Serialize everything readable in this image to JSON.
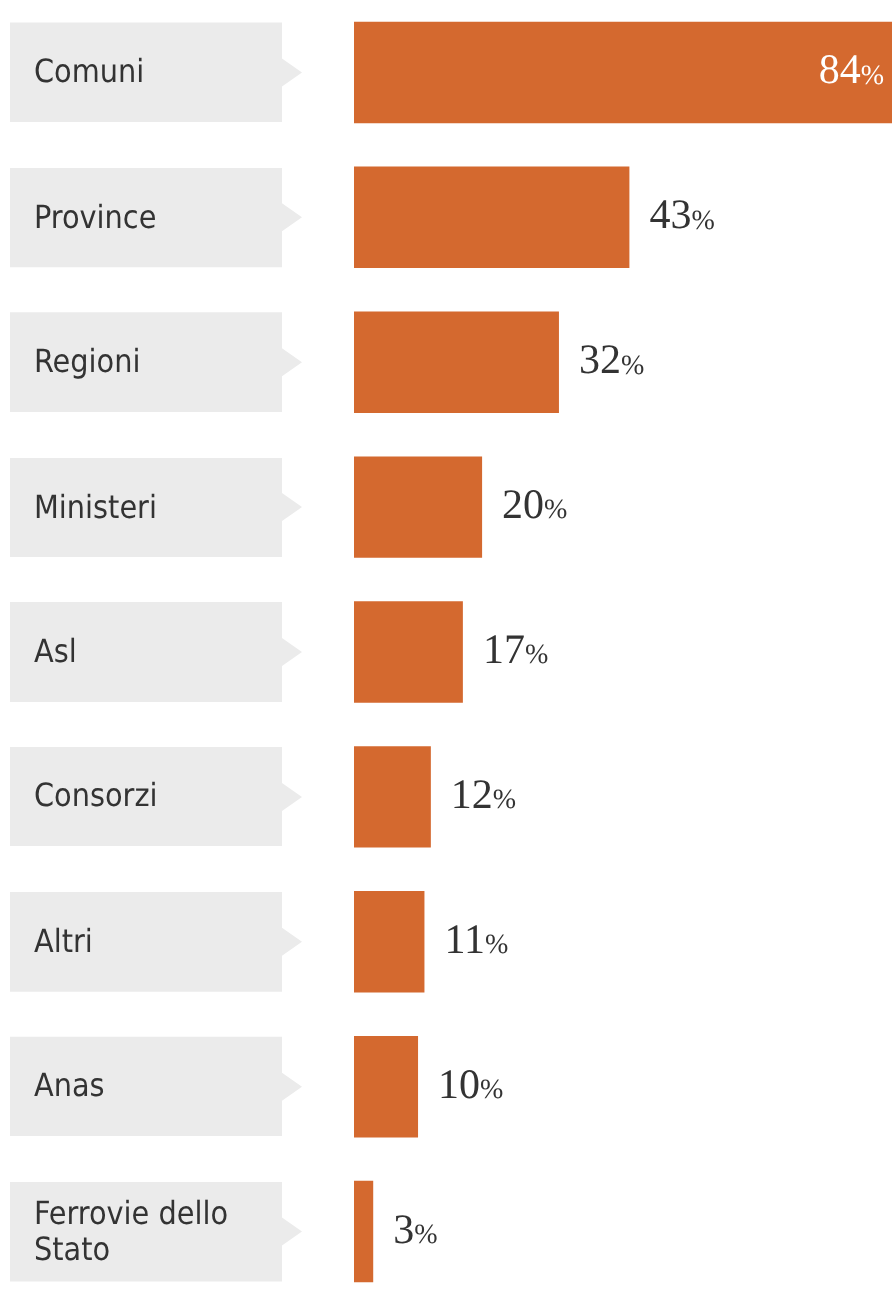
{
  "chart_data": {
    "type": "bar",
    "orientation": "horizontal",
    "categories": [
      "Comuni",
      "Province",
      "Regioni",
      "Ministeri",
      "Asl",
      "Consorzi",
      "Altri",
      "Anas",
      "Ferrovie dello Stato"
    ],
    "values": [
      84,
      43,
      32,
      20,
      17,
      12,
      11,
      10,
      3
    ],
    "value_labels": [
      "84%",
      "43%",
      "32%",
      "20%",
      "17%",
      "12%",
      "11%",
      "10%",
      "3%"
    ],
    "color": "#d4692f",
    "xlim": [
      0,
      84
    ]
  }
}
